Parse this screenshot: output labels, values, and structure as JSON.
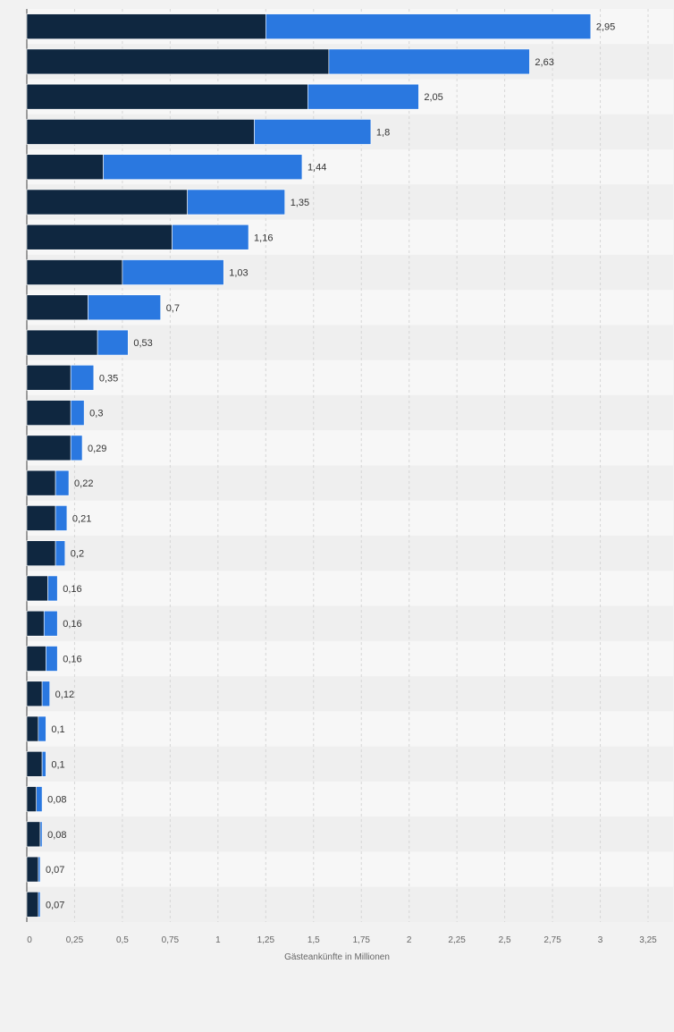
{
  "chart_data": {
    "type": "bar",
    "orientation": "horizontal",
    "stacked": true,
    "categories": [
      "",
      "",
      "",
      "",
      "",
      "",
      "",
      "",
      "",
      "",
      "",
      "",
      "",
      "",
      "",
      "",
      "",
      "",
      "",
      "",
      "",
      "",
      "",
      "",
      "",
      ""
    ],
    "series": [
      {
        "values": [
          1.25,
          1.58,
          1.47,
          1.19,
          0.4,
          0.84,
          0.76,
          0.5,
          0.32,
          0.37,
          0.23,
          0.23,
          0.23,
          0.15,
          0.15,
          0.15,
          0.11,
          0.09,
          0.1,
          0.08,
          0.06,
          0.08,
          0.05,
          0.07,
          0.06,
          0.06
        ]
      },
      {
        "values": [
          1.7,
          1.05,
          0.58,
          0.61,
          1.04,
          0.51,
          0.4,
          0.53,
          0.38,
          0.16,
          0.12,
          0.07,
          0.06,
          0.07,
          0.06,
          0.05,
          0.05,
          0.07,
          0.06,
          0.04,
          0.04,
          0.02,
          0.03,
          0.01,
          0.01,
          0.01
        ]
      }
    ],
    "total_labels": [
      "2,95",
      "2,63",
      "2,05",
      "1,8",
      "1,44",
      "1,35",
      "1,16",
      "1,03",
      "0,7",
      "0,53",
      "0,35",
      "0,3",
      "0,29",
      "0,22",
      "0,21",
      "0,2",
      "0,16",
      "0,16",
      "0,16",
      "0,12",
      "0,1",
      "0,1",
      "0,08",
      "0,08",
      "0,07",
      "0,07"
    ],
    "x_ticks": [
      0,
      0.25,
      0.5,
      0.75,
      1,
      1.25,
      1.5,
      1.75,
      2,
      2.25,
      2.5,
      2.75,
      3,
      3.25
    ],
    "x_tick_labels": [
      "0",
      "0,25",
      "0,5",
      "0,75",
      "1",
      "1,25",
      "1,5",
      "1,75",
      "2",
      "2,25",
      "2,5",
      "2,75",
      "3",
      "3,25"
    ],
    "xlabel": "Gästeankünfte in Millionen",
    "ylabel": "",
    "xlim": [
      0,
      3.25
    ],
    "grid": "vertical-dashed",
    "colors": {
      "series_1": "#0f2740",
      "series_2": "#2a78e0",
      "grid": "#d6d6d6",
      "band_light": "#f7f7f7",
      "band_dark": "#efefef",
      "text": "#333333",
      "axis_text": "#666666"
    }
  }
}
